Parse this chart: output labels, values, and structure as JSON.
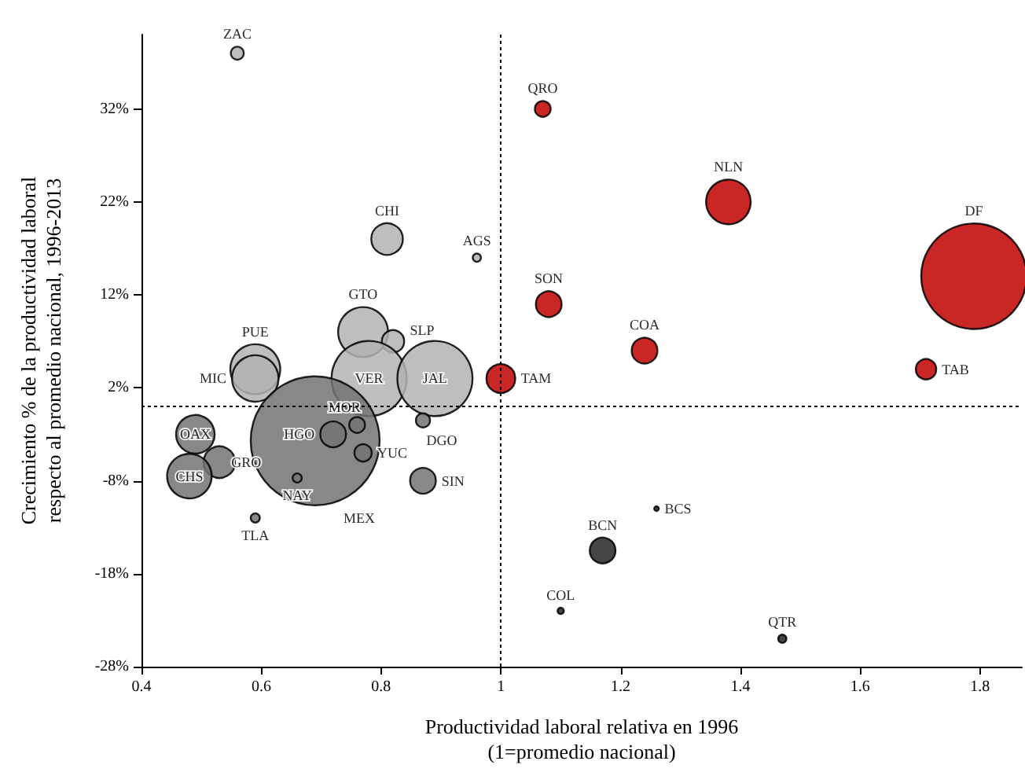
{
  "chart_data": {
    "type": "bubble",
    "xlabel": "Productividad laboral relativa en 1996\n(1=promedio nacional)",
    "ylabel": "Crecimiento % de la productividad laboral\nrespecto al promedio nacional, 1996-2013",
    "xlim": [
      0.4,
      1.87
    ],
    "xticks": [
      0.4,
      0.6,
      0.8,
      1,
      1.2,
      1.4,
      1.6,
      1.8
    ],
    "ylim": [
      -28,
      40
    ],
    "yticks": [
      {
        "value": -28,
        "label": "-28%"
      },
      {
        "value": -18,
        "label": "-18%"
      },
      {
        "value": -8,
        "label": "-8%"
      },
      {
        "value": 2,
        "label": "2%"
      },
      {
        "value": 12,
        "label": "12%"
      },
      {
        "value": 22,
        "label": "22%"
      },
      {
        "value": 32,
        "label": "32%"
      }
    ],
    "grid": false,
    "legend": false,
    "marker": "circle",
    "ref_lines": [
      {
        "axis": "x",
        "value": 1,
        "line_style": "dotted",
        "color": "#000000"
      },
      {
        "axis": "y",
        "value": 0,
        "line_style": "dotted",
        "color": "#000000"
      }
    ],
    "series": [
      {
        "name": "ZAC",
        "color": "#b3b3b3",
        "x": [
          0.56
        ],
        "values": [
          38
        ],
        "sizes": [
          0.01
        ]
      },
      {
        "name": "QRO",
        "color": "#c00000",
        "x": [
          1.07
        ],
        "values": [
          32
        ],
        "sizes": [
          0.015
        ]
      },
      {
        "name": "NLN",
        "color": "#c00000",
        "x": [
          1.38
        ],
        "values": [
          22
        ],
        "sizes": [
          0.12
        ]
      },
      {
        "name": "DF",
        "color": "#c00000",
        "x": [
          1.79
        ],
        "values": [
          14
        ],
        "sizes": [
          0.67
        ]
      },
      {
        "name": "AGS",
        "color": "#b3b3b3",
        "x": [
          0.96
        ],
        "values": [
          16
        ],
        "sizes": [
          0.004
        ]
      },
      {
        "name": "CHI",
        "color": "#b3b3b3",
        "x": [
          0.81
        ],
        "values": [
          18
        ],
        "sizes": [
          0.06
        ]
      },
      {
        "name": "SON",
        "color": "#c00000",
        "x": [
          1.08
        ],
        "values": [
          11
        ],
        "sizes": [
          0.04
        ]
      },
      {
        "name": "COA",
        "color": "#c00000",
        "x": [
          1.24
        ],
        "values": [
          6
        ],
        "sizes": [
          0.04
        ]
      },
      {
        "name": "TAM",
        "color": "#c00000",
        "x": [
          1.0
        ],
        "values": [
          3
        ],
        "sizes": [
          0.05
        ]
      },
      {
        "name": "TAB",
        "color": "#c00000",
        "x": [
          1.71
        ],
        "values": [
          4
        ],
        "sizes": [
          0.025
        ]
      },
      {
        "name": "BCS",
        "color": "#262626",
        "x": [
          1.26
        ],
        "values": [
          -11
        ],
        "sizes": [
          0.0013
        ]
      },
      {
        "name": "BCN",
        "color": "#262626",
        "x": [
          1.17
        ],
        "values": [
          -15.5
        ],
        "sizes": [
          0.04
        ]
      },
      {
        "name": "COL",
        "color": "#262626",
        "x": [
          1.1
        ],
        "values": [
          -22
        ],
        "sizes": [
          0.0024
        ]
      },
      {
        "name": "QTR",
        "color": "#262626",
        "x": [
          1.47
        ],
        "values": [
          -25
        ],
        "sizes": [
          0.004
        ]
      },
      {
        "name": "GTO",
        "color": "#b3b3b3",
        "x": [
          0.77
        ],
        "values": [
          8
        ],
        "sizes": [
          0.15
        ]
      },
      {
        "name": "SLP",
        "color": "#b3b3b3",
        "x": [
          0.82
        ],
        "values": [
          7
        ],
        "sizes": [
          0.03
        ]
      },
      {
        "name": "PUE",
        "color": "#b3b3b3",
        "x": [
          0.59
        ],
        "values": [
          4
        ],
        "sizes": [
          0.15
        ]
      },
      {
        "name": "MIC",
        "color": "#b3b3b3",
        "x": [
          0.59
        ],
        "values": [
          3
        ],
        "sizes": [
          0.13
        ]
      },
      {
        "name": "VER",
        "color": "#b3b3b3",
        "x": [
          0.78
        ],
        "values": [
          3
        ],
        "sizes": [
          0.34
        ]
      },
      {
        "name": "JAL",
        "color": "#b3b3b3",
        "x": [
          0.89
        ],
        "values": [
          3
        ],
        "sizes": [
          0.34
        ]
      },
      {
        "name": "MEX",
        "color": "#737373",
        "x": [
          0.69
        ],
        "values": [
          -3.7
        ],
        "sizes": [
          1
        ]
      },
      {
        "name": "HGO",
        "color": "#737373",
        "x": [
          0.72
        ],
        "values": [
          -3
        ],
        "sizes": [
          0.04
        ]
      },
      {
        "name": "MOR",
        "color": "#737373",
        "x": [
          0.76
        ],
        "values": [
          -2
        ],
        "sizes": [
          0.015
        ]
      },
      {
        "name": "YUC",
        "color": "#737373",
        "x": [
          0.77
        ],
        "values": [
          -5
        ],
        "sizes": [
          0.018
        ]
      },
      {
        "name": "DGO",
        "color": "#737373",
        "x": [
          0.87
        ],
        "values": [
          -1.5
        ],
        "sizes": [
          0.012
        ]
      },
      {
        "name": "SIN",
        "color": "#737373",
        "x": [
          0.87
        ],
        "values": [
          -8
        ],
        "sizes": [
          0.04
        ]
      },
      {
        "name": "NAY",
        "color": "#737373",
        "x": [
          0.66
        ],
        "values": [
          -7.7
        ],
        "sizes": [
          0.005
        ]
      },
      {
        "name": "OAX",
        "color": "#737373",
        "x": [
          0.49
        ],
        "values": [
          -3
        ],
        "sizes": [
          0.09
        ]
      },
      {
        "name": "GRO",
        "color": "#737373",
        "x": [
          0.53
        ],
        "values": [
          -6
        ],
        "sizes": [
          0.06
        ]
      },
      {
        "name": "CHS",
        "color": "#737373",
        "x": [
          0.48
        ],
        "values": [
          -7.5
        ],
        "sizes": [
          0.12
        ]
      },
      {
        "name": "TLA",
        "color": "#737373",
        "x": [
          0.59
        ],
        "values": [
          -12
        ],
        "sizes": [
          0.005
        ]
      }
    ]
  }
}
